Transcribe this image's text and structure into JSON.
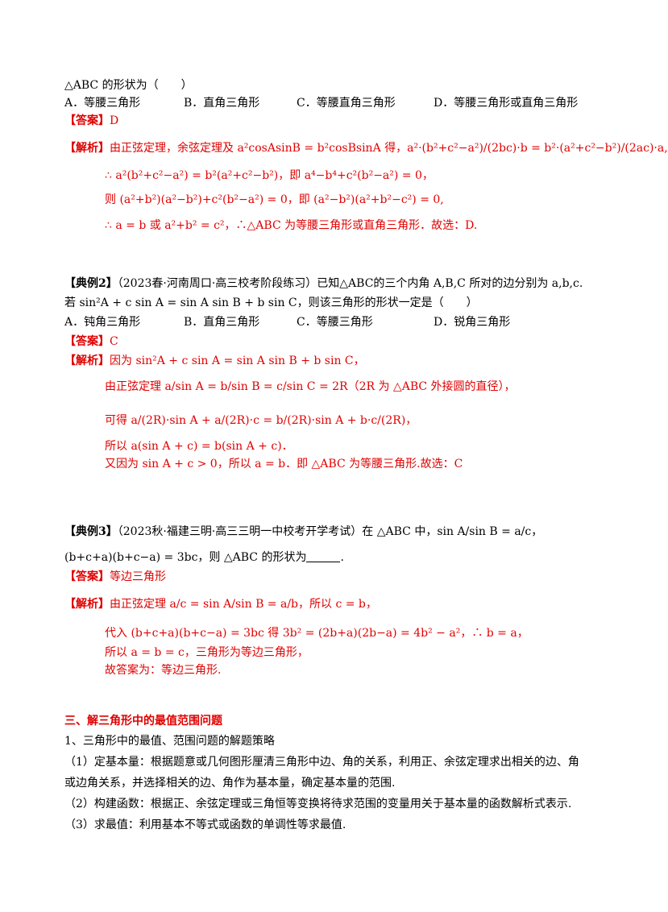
{
  "q1": {
    "stem": "△ABC 的形状为（　　）",
    "options": [
      "A．等腰三角形",
      "B．直角三角形",
      "C．等腰直角三角形",
      "D．等腰三角形或直角三角形"
    ],
    "answer_label": "【答案】",
    "answer": "D",
    "analysis_label": "【解析】",
    "lines": [
      "由正弦定理，余弦定理及 a²cosAsinB = b²cosBsinA 得，a²·(b²+c²−a²)/(2bc)·b = b²·(a²+c²−b²)/(2ac)·a,",
      "∴ a²(b²+c²−a²) = b²(a²+c²−b²)，即 a⁴−b⁴+c²(b²−a²) = 0，",
      "则 (a²+b²)(a²−b²)+c²(b²−a²) = 0，即 (a²−b²)(a²+b²−c²) = 0,",
      "∴ a = b 或 a²+b² = c²，∴△ABC 为等腰三角形或直角三角形．故选：D."
    ]
  },
  "ex2": {
    "title": "【典例2】",
    "source": "（2023春·河南周口·高三校考阶段练习）已知△ABC的三个内角 A,B,C 所对的边分别为 a,b,c.",
    "stem2": "若 sin²A + c sin A = sin A sin B + b sin C，则该三角形的形状一定是（　　）",
    "options": [
      "A．钝角三角形",
      "B．直角三角形",
      "C．等腰三角形",
      "D．锐角三角形"
    ],
    "answer_label": "【答案】",
    "answer": "C",
    "analysis_label": "【解析】",
    "lines": [
      "因为 sin²A + c sin A = sin A sin B + b sin C，",
      "由正弦定理 a/sin A = b/sin B = c/sin C = 2R（2R 为 △ABC 外接圆的直径），",
      "可得 a/(2R)·sin A + a/(2R)·c = b/(2R)·sin A + b·c/(2R)，",
      "所以 a(sin A + c) = b(sin A + c)．",
      "又因为 sin A + c > 0，所以 a = b．即 △ABC 为等腰三角形.故选：C"
    ]
  },
  "ex3": {
    "title": "【典例3】",
    "source": "（2023秋·福建三明·高三三明一中校考开学考试）在 △ABC 中，sin A/sin B = a/c，",
    "stem2": "(b+c+a)(b+c−a) = 3bc，则 △ABC 的形状为",
    "stem2_end": ".",
    "answer_label": "【答案】",
    "answer": "等边三角形",
    "analysis_label": "【解析】",
    "lines": [
      "由正弦定理 a/c = sin A/sin B = a/b，所以 c = b，",
      "代入 (b+c+a)(b+c−a) = 3bc 得 3b² = (2b+a)(2b−a) = 4b² − a²，∴ b = a，",
      "所以 a = b = c，三角形为等边三角形，",
      "故答案为：等边三角形."
    ]
  },
  "section3": {
    "heading": "三、解三角形中的最值范围问题",
    "item1": "1、三角形中的最值、范围问题的解题策略",
    "p1a": "（1）定基本量：根据题意或几何图形厘清三角形中边、角的关系，利用正、余弦定理求出相关的边、角",
    "p1b": "或边角关系，并选择相关的边、角作为基本量，确定基本量的范围.",
    "p2": "（2）构建函数：根据正、余弦定理或三角恒等变换将待求范围的变量用关于基本量的函数解析式表示.",
    "p3": "（3）求最值：利用基本不等式或函数的单调性等求最值."
  }
}
